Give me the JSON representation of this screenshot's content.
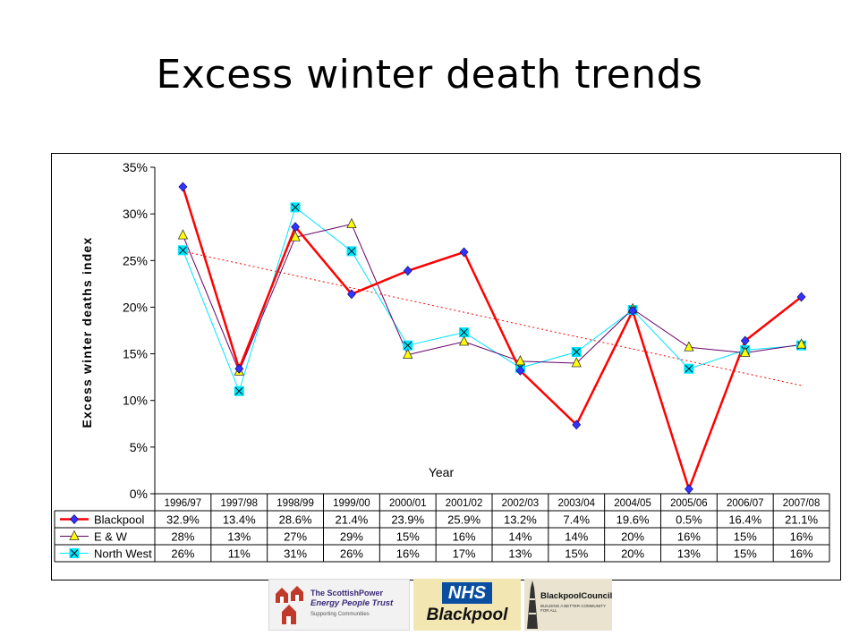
{
  "slide": {
    "title": "Excess winter death trends"
  },
  "chart_data": {
    "type": "line",
    "xlabel": "Year",
    "ylabel": "Excess winter deaths index",
    "ylim": [
      0,
      35
    ],
    "ytick_values": [
      0,
      5,
      10,
      15,
      20,
      25,
      30,
      35
    ],
    "ytick_labels": [
      "0%",
      "5%",
      "10%",
      "15%",
      "20%",
      "25%",
      "30%",
      "35%"
    ],
    "categories": [
      "1996/97",
      "1997/98",
      "1998/99",
      "1999/00",
      "2000/01",
      "2001/02",
      "2002/03",
      "2003/04",
      "2004/05",
      "2005/06",
      "2006/07",
      "2007/08"
    ],
    "series": [
      {
        "name": "Blackpool",
        "color": "#ff0000",
        "marker": "diamond",
        "marker_color": "#3333ff",
        "values": [
          32.9,
          13.4,
          28.6,
          21.4,
          23.9,
          25.9,
          13.2,
          7.4,
          19.6,
          0.5,
          16.4,
          21.1
        ],
        "labels": [
          "32.9%",
          "13.4%",
          "28.6%",
          "21.4%",
          "23.9%",
          "25.9%",
          "13.2%",
          "7.4%",
          "19.6%",
          "0.5%",
          "16.4%",
          "21.1%"
        ]
      },
      {
        "name": "E & W",
        "color": "#660066",
        "marker": "triangle",
        "marker_color": "#ffff00",
        "values": [
          27.7,
          13.1,
          27.5,
          28.9,
          14.9,
          16.3,
          14.2,
          14.0,
          19.8,
          15.7,
          15.1,
          16.0
        ],
        "labels": [
          "28%",
          "13%",
          "27%",
          "29%",
          "15%",
          "16%",
          "14%",
          "14%",
          "20%",
          "16%",
          "15%",
          "16%"
        ]
      },
      {
        "name": "North West",
        "color": "#00e5ff",
        "marker": "x-square",
        "marker_color": "#00e5ff",
        "values": [
          26.1,
          11.0,
          30.7,
          26.0,
          15.9,
          17.3,
          13.5,
          15.2,
          19.7,
          13.4,
          15.4,
          15.9
        ],
        "labels": [
          "26%",
          "11%",
          "31%",
          "26%",
          "16%",
          "17%",
          "13%",
          "15%",
          "20%",
          "13%",
          "15%",
          "16%"
        ]
      }
    ],
    "trendline": {
      "color": "#ff0000",
      "style": "dotted",
      "start": 26.0,
      "end": 11.6
    },
    "grid": false,
    "data_table": true
  },
  "logos": {
    "scottish_power": {
      "line1": "The ScottishPower",
      "line2": "Energy People Trust",
      "line3": "Supporting Communities"
    },
    "nhs": {
      "badge": "NHS",
      "name": "Blackpool"
    },
    "blackpool_council": {
      "name": "BlackpoolCouncil",
      "tagline": "BUILDING A BETTER COMMUNITY FOR ALL"
    }
  }
}
